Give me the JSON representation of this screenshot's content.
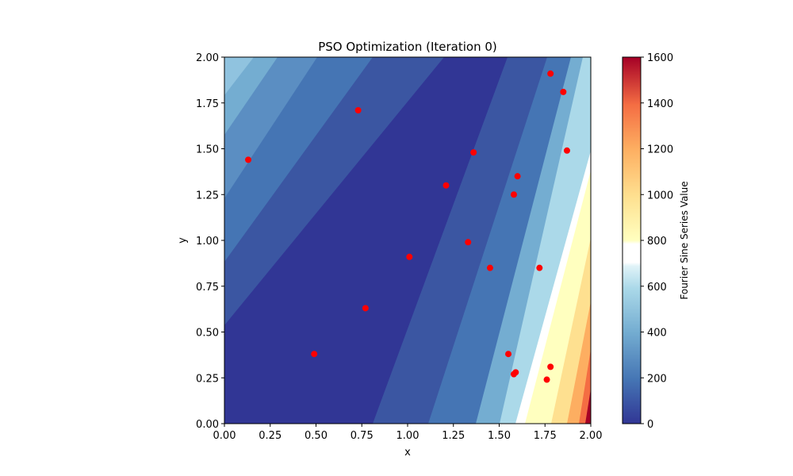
{
  "chart_data": {
    "type": "contour+scatter",
    "title": "PSO Optimization (Iteration 0)",
    "xlabel": "x",
    "ylabel": "y",
    "xlim": [
      0,
      2
    ],
    "ylim": [
      0,
      2
    ],
    "x_ticks": [
      "0.00",
      "0.25",
      "0.50",
      "0.75",
      "1.00",
      "1.25",
      "1.50",
      "1.75",
      "2.00"
    ],
    "y_ticks": [
      "0.00",
      "0.25",
      "0.50",
      "0.75",
      "1.00",
      "1.25",
      "1.50",
      "1.75",
      "2.00"
    ],
    "colorbar": {
      "label": "Fourier Sine Series Value",
      "range": [
        0,
        1600
      ],
      "ticks": [
        "0",
        "200",
        "400",
        "600",
        "800",
        "1000",
        "1200",
        "1400",
        "1600"
      ],
      "colormap": "RdYlBu_r"
    },
    "particles": {
      "color": "#ff0000",
      "points": [
        {
          "x": 0.13,
          "y": 1.44
        },
        {
          "x": 0.73,
          "y": 1.71
        },
        {
          "x": 1.78,
          "y": 1.91
        },
        {
          "x": 1.85,
          "y": 1.81
        },
        {
          "x": 1.87,
          "y": 1.49
        },
        {
          "x": 1.36,
          "y": 1.48
        },
        {
          "x": 1.6,
          "y": 1.35
        },
        {
          "x": 1.21,
          "y": 1.3
        },
        {
          "x": 1.58,
          "y": 1.25
        },
        {
          "x": 1.33,
          "y": 0.99
        },
        {
          "x": 1.01,
          "y": 0.91
        },
        {
          "x": 1.45,
          "y": 0.85
        },
        {
          "x": 1.72,
          "y": 0.85
        },
        {
          "x": 0.77,
          "y": 0.63
        },
        {
          "x": 0.49,
          "y": 0.38
        },
        {
          "x": 1.55,
          "y": 0.38
        },
        {
          "x": 1.78,
          "y": 0.31
        },
        {
          "x": 1.59,
          "y": 0.28
        },
        {
          "x": 1.58,
          "y": 0.27
        },
        {
          "x": 1.76,
          "y": 0.24
        }
      ]
    }
  }
}
